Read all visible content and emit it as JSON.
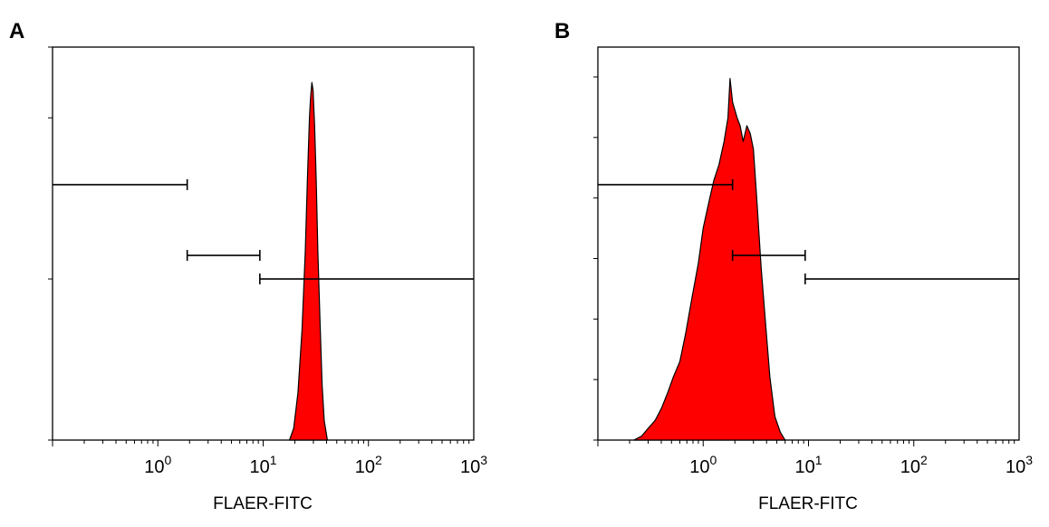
{
  "chart_data": [
    {
      "panel_label": "A",
      "type": "histogram",
      "xlabel": "FLAER-FITC",
      "ylabel": "",
      "xscale": "log",
      "xlim": [
        0.1,
        1000
      ],
      "ylim": [
        0,
        100
      ],
      "x_ticks": [
        {
          "value": 1,
          "base": "10",
          "exp": "0"
        },
        {
          "value": 10,
          "base": "10",
          "exp": "1"
        },
        {
          "value": 100,
          "base": "10",
          "exp": "2"
        },
        {
          "value": 1000,
          "base": "10",
          "exp": "3"
        }
      ],
      "y_ticks": [
        0,
        41,
        82,
        100
      ],
      "fill_color": "#ff0000",
      "histogram": {
        "x": [
          17.8,
          19.5,
          21.4,
          23.4,
          25.1,
          26.3,
          27.5,
          28.2,
          29.0,
          29.8,
          30.8,
          31.9,
          33.1,
          34.7,
          36.3,
          38.0,
          40.7
        ],
        "y": [
          0,
          3,
          12,
          28,
          48,
          66,
          82,
          87,
          91,
          89,
          80,
          66,
          48,
          30,
          14,
          5,
          0
        ]
      },
      "markers": [
        {
          "x1": 0.1,
          "x2": 1.9,
          "y": 65
        },
        {
          "x1": 1.9,
          "x2": 9.3,
          "y": 47
        },
        {
          "x1": 9.3,
          "x2": 1000,
          "y": 41
        }
      ]
    },
    {
      "panel_label": "B",
      "type": "histogram",
      "xlabel": "FLAER-FITC",
      "ylabel": "",
      "xscale": "log",
      "xlim": [
        0.1,
        1000
      ],
      "ylim": [
        0,
        100
      ],
      "x_ticks": [
        {
          "value": 1,
          "base": "10",
          "exp": "0"
        },
        {
          "value": 10,
          "base": "10",
          "exp": "1"
        },
        {
          "value": 100,
          "base": "10",
          "exp": "2"
        },
        {
          "value": 1000,
          "base": "10",
          "exp": "3"
        }
      ],
      "y_ticks": [
        0,
        15.4,
        30.8,
        46.2,
        61.6,
        77,
        92.4
      ],
      "fill_color": "#ff0000",
      "histogram": {
        "x": [
          0.22,
          0.26,
          0.3,
          0.35,
          0.4,
          0.46,
          0.52,
          0.6,
          0.68,
          0.78,
          0.9,
          1.0,
          1.12,
          1.26,
          1.41,
          1.58,
          1.72,
          1.8,
          1.9,
          2.0,
          2.1,
          2.24,
          2.4,
          2.6,
          2.8,
          3.0,
          3.25,
          3.55,
          3.9,
          4.3,
          4.8,
          5.4,
          6.0
        ],
        "y": [
          0,
          1,
          3,
          5,
          8,
          12,
          16,
          20,
          27,
          36,
          45,
          54,
          60,
          66,
          70,
          76,
          82,
          92,
          86,
          84,
          82,
          80,
          76,
          80,
          78,
          74,
          60,
          44,
          30,
          16,
          6,
          2,
          0
        ]
      },
      "markers": [
        {
          "x1": 0.1,
          "x2": 1.9,
          "y": 65
        },
        {
          "x1": 1.9,
          "x2": 9.3,
          "y": 47
        },
        {
          "x1": 9.3,
          "x2": 1000,
          "y": 41
        }
      ]
    }
  ]
}
